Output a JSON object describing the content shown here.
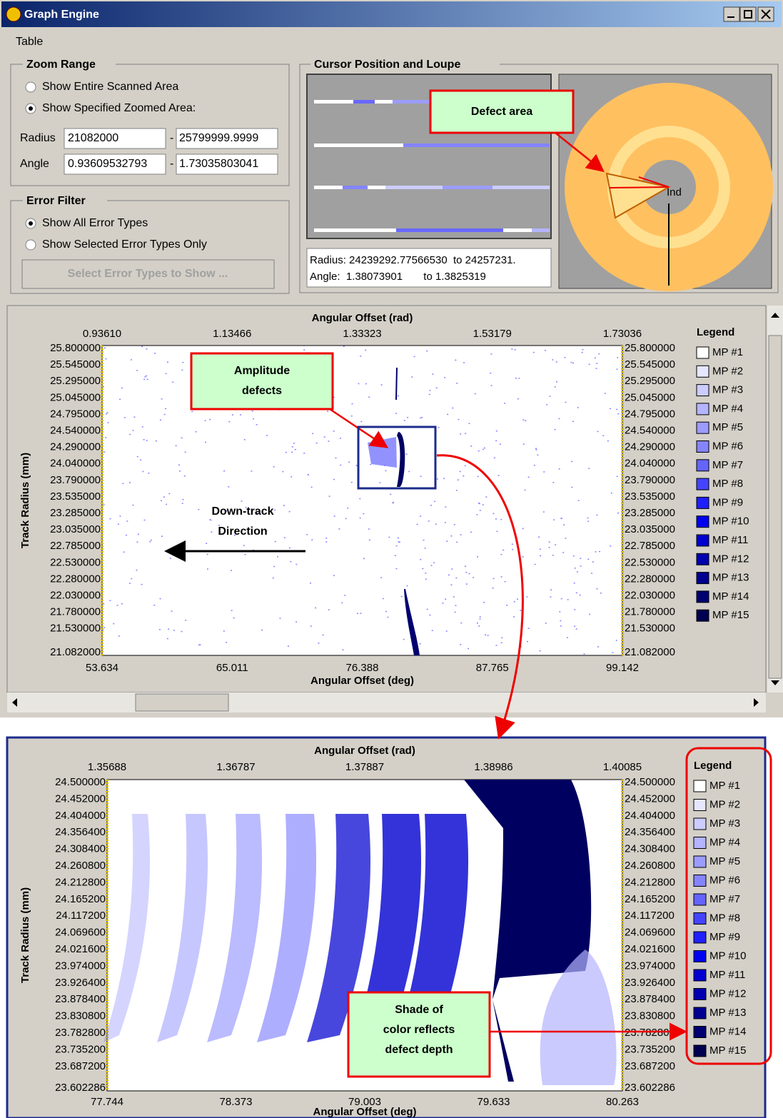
{
  "window": {
    "title": "Graph Engine",
    "menu": [
      "Table"
    ]
  },
  "zoom_range": {
    "title": "Zoom Range",
    "options": [
      "Show Entire Scanned Area",
      "Show Specified Zoomed Area:"
    ],
    "selected": 1,
    "radius_label": "Radius",
    "radius_from": "21082000",
    "radius_to": "25799999.9999",
    "angle_label": "Angle",
    "angle_from": "0.93609532793",
    "angle_to": "1.73035803041"
  },
  "error_filter": {
    "title": "Error Filter",
    "options": [
      "Show All Error Types",
      "Show Selected Error Types Only"
    ],
    "selected": 0,
    "button": "Select Error Types to Show ..."
  },
  "cursor": {
    "title": "Cursor Position and Loupe",
    "radius_line": "Radius: 24239292.77566530  to 24257231.",
    "angle_line": "Angle:  1.38073901       to 1.3825319",
    "loupe_label": "Ind"
  },
  "callouts": {
    "defect_area": "Defect area",
    "amplitude_defects": [
      "Amplitude",
      "defects"
    ],
    "down_track": [
      "Down-track",
      "Direction"
    ],
    "shade": [
      "Shade of",
      "color reflects",
      "defect depth"
    ]
  },
  "plots": [
    {
      "top_axis_title": "Angular Offset (rad)",
      "top_ticks": [
        "0.93610",
        "1.13466",
        "1.33323",
        "1.53179",
        "1.73036"
      ],
      "y_axis_title": "Track Radius (mm)",
      "left_ticks": [
        "25.800000",
        "25.545000",
        "25.295000",
        "25.045000",
        "24.795000",
        "24.540000",
        "24.290000",
        "24.040000",
        "23.790000",
        "23.535000",
        "23.285000",
        "23.035000",
        "22.785000",
        "22.530000",
        "22.280000",
        "22.030000",
        "21.780000",
        "21.530000",
        "21.082000"
      ],
      "right_ticks": [
        "25.800000",
        "25.545000",
        "25.295000",
        "25.045000",
        "24.795000",
        "24.540000",
        "24.290000",
        "24.040000",
        "23.790000",
        "23.535000",
        "23.285000",
        "23.035000",
        "22.785000",
        "22.530000",
        "22.280000",
        "22.030000",
        "21.780000",
        "21.530000",
        "21.082000"
      ],
      "bottom_ticks": [
        "53.634",
        "65.011",
        "76.388",
        "87.765",
        "99.142"
      ],
      "bottom_axis_title": "Angular Offset (deg)",
      "legend_title": "Legend",
      "legend": [
        {
          "label": "MP #1",
          "color": "#ffffff"
        },
        {
          "label": "MP #2",
          "color": "#e6e6ff"
        },
        {
          "label": "MP #3",
          "color": "#ccccff"
        },
        {
          "label": "MP #4",
          "color": "#b4b4ff"
        },
        {
          "label": "MP #5",
          "color": "#9c9cff"
        },
        {
          "label": "MP #6",
          "color": "#8484ff"
        },
        {
          "label": "MP #7",
          "color": "#6464ff"
        },
        {
          "label": "MP #8",
          "color": "#4444ff"
        },
        {
          "label": "MP #9",
          "color": "#2020ff"
        },
        {
          "label": "MP #10",
          "color": "#0000f0"
        },
        {
          "label": "MP #11",
          "color": "#0000d0"
        },
        {
          "label": "MP #12",
          "color": "#0000b0"
        },
        {
          "label": "MP #13",
          "color": "#000090"
        },
        {
          "label": "MP #14",
          "color": "#000070"
        },
        {
          "label": "MP #15",
          "color": "#000050"
        }
      ]
    },
    {
      "top_axis_title": "Angular Offset (rad)",
      "top_ticks": [
        "1.35688",
        "1.36787",
        "1.37887",
        "1.38986",
        "1.40085"
      ],
      "y_axis_title": "Track Radius (mm)",
      "left_ticks": [
        "24.500000",
        "24.452000",
        "24.404000",
        "24.356400",
        "24.308400",
        "24.260800",
        "24.212800",
        "24.165200",
        "24.117200",
        "24.069600",
        "24.021600",
        "23.974000",
        "23.926400",
        "23.878400",
        "23.830800",
        "23.782800",
        "23.735200",
        "23.687200",
        "23.602286"
      ],
      "right_ticks": [
        "24.500000",
        "24.452000",
        "24.404000",
        "24.356400",
        "24.308400",
        "24.260800",
        "24.212800",
        "24.165200",
        "24.117200",
        "24.069600",
        "24.021600",
        "23.974000",
        "23.926400",
        "23.878400",
        "23.830800",
        "23.782800",
        "23.735200",
        "23.687200",
        "23.602286"
      ],
      "bottom_ticks": [
        "77.744",
        "78.373",
        "79.003",
        "79.633",
        "80.263"
      ],
      "bottom_axis_title": "Angular Offset (deg)",
      "legend_title": "Legend",
      "legend": [
        {
          "label": "MP #1",
          "color": "#ffffff"
        },
        {
          "label": "MP #2",
          "color": "#e6e6ff"
        },
        {
          "label": "MP #3",
          "color": "#ccccff"
        },
        {
          "label": "MP #4",
          "color": "#b4b4ff"
        },
        {
          "label": "MP #5",
          "color": "#9c9cff"
        },
        {
          "label": "MP #6",
          "color": "#8484ff"
        },
        {
          "label": "MP #7",
          "color": "#6464ff"
        },
        {
          "label": "MP #8",
          "color": "#4444ff"
        },
        {
          "label": "MP #9",
          "color": "#2020ff"
        },
        {
          "label": "MP #10",
          "color": "#0000f0"
        },
        {
          "label": "MP #11",
          "color": "#0000d0"
        },
        {
          "label": "MP #12",
          "color": "#0000b0"
        },
        {
          "label": "MP #13",
          "color": "#000090"
        },
        {
          "label": "MP #14",
          "color": "#000070"
        },
        {
          "label": "MP #15",
          "color": "#000050"
        }
      ]
    }
  ]
}
